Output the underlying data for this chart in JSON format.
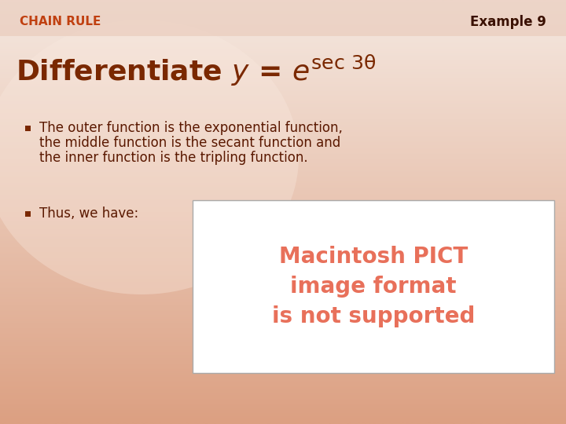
{
  "bg_top_color": "#f5e8e0",
  "bg_bottom_color": "#e8b898",
  "header_strip_color": "#e8c8b8",
  "header_strip_alpha": 0.6,
  "chain_rule_text": "CHAIN RULE",
  "chain_rule_color": "#c04010",
  "chain_rule_fontsize": 11,
  "example_text": "Example 9",
  "example_color": "#3a1000",
  "example_fontsize": 12,
  "title_text_prefix": "Differentiate ",
  "title_color": "#7a2800",
  "title_fontsize": 26,
  "bullet_color": "#7a2800",
  "bullet_text_color": "#5a1800",
  "bullet_text_fontsize": 12,
  "bullet1_line1": "The outer function is the exponential function,",
  "bullet1_line2": "the middle function is the secant function and",
  "bullet1_line3": "the inner function is the tripling function.",
  "bullet2_text": "Thus, we have:",
  "pict_box_color": "#ffffff",
  "pict_border_color": "#aaaaaa",
  "pict_text_color": "#e8705a",
  "pict_line1": "Macintosh PICT",
  "pict_line2": "image format",
  "pict_line3": "is not supported",
  "pict_fontsize": 20,
  "fig_width": 7.2,
  "fig_height": 5.4,
  "dpi": 100
}
